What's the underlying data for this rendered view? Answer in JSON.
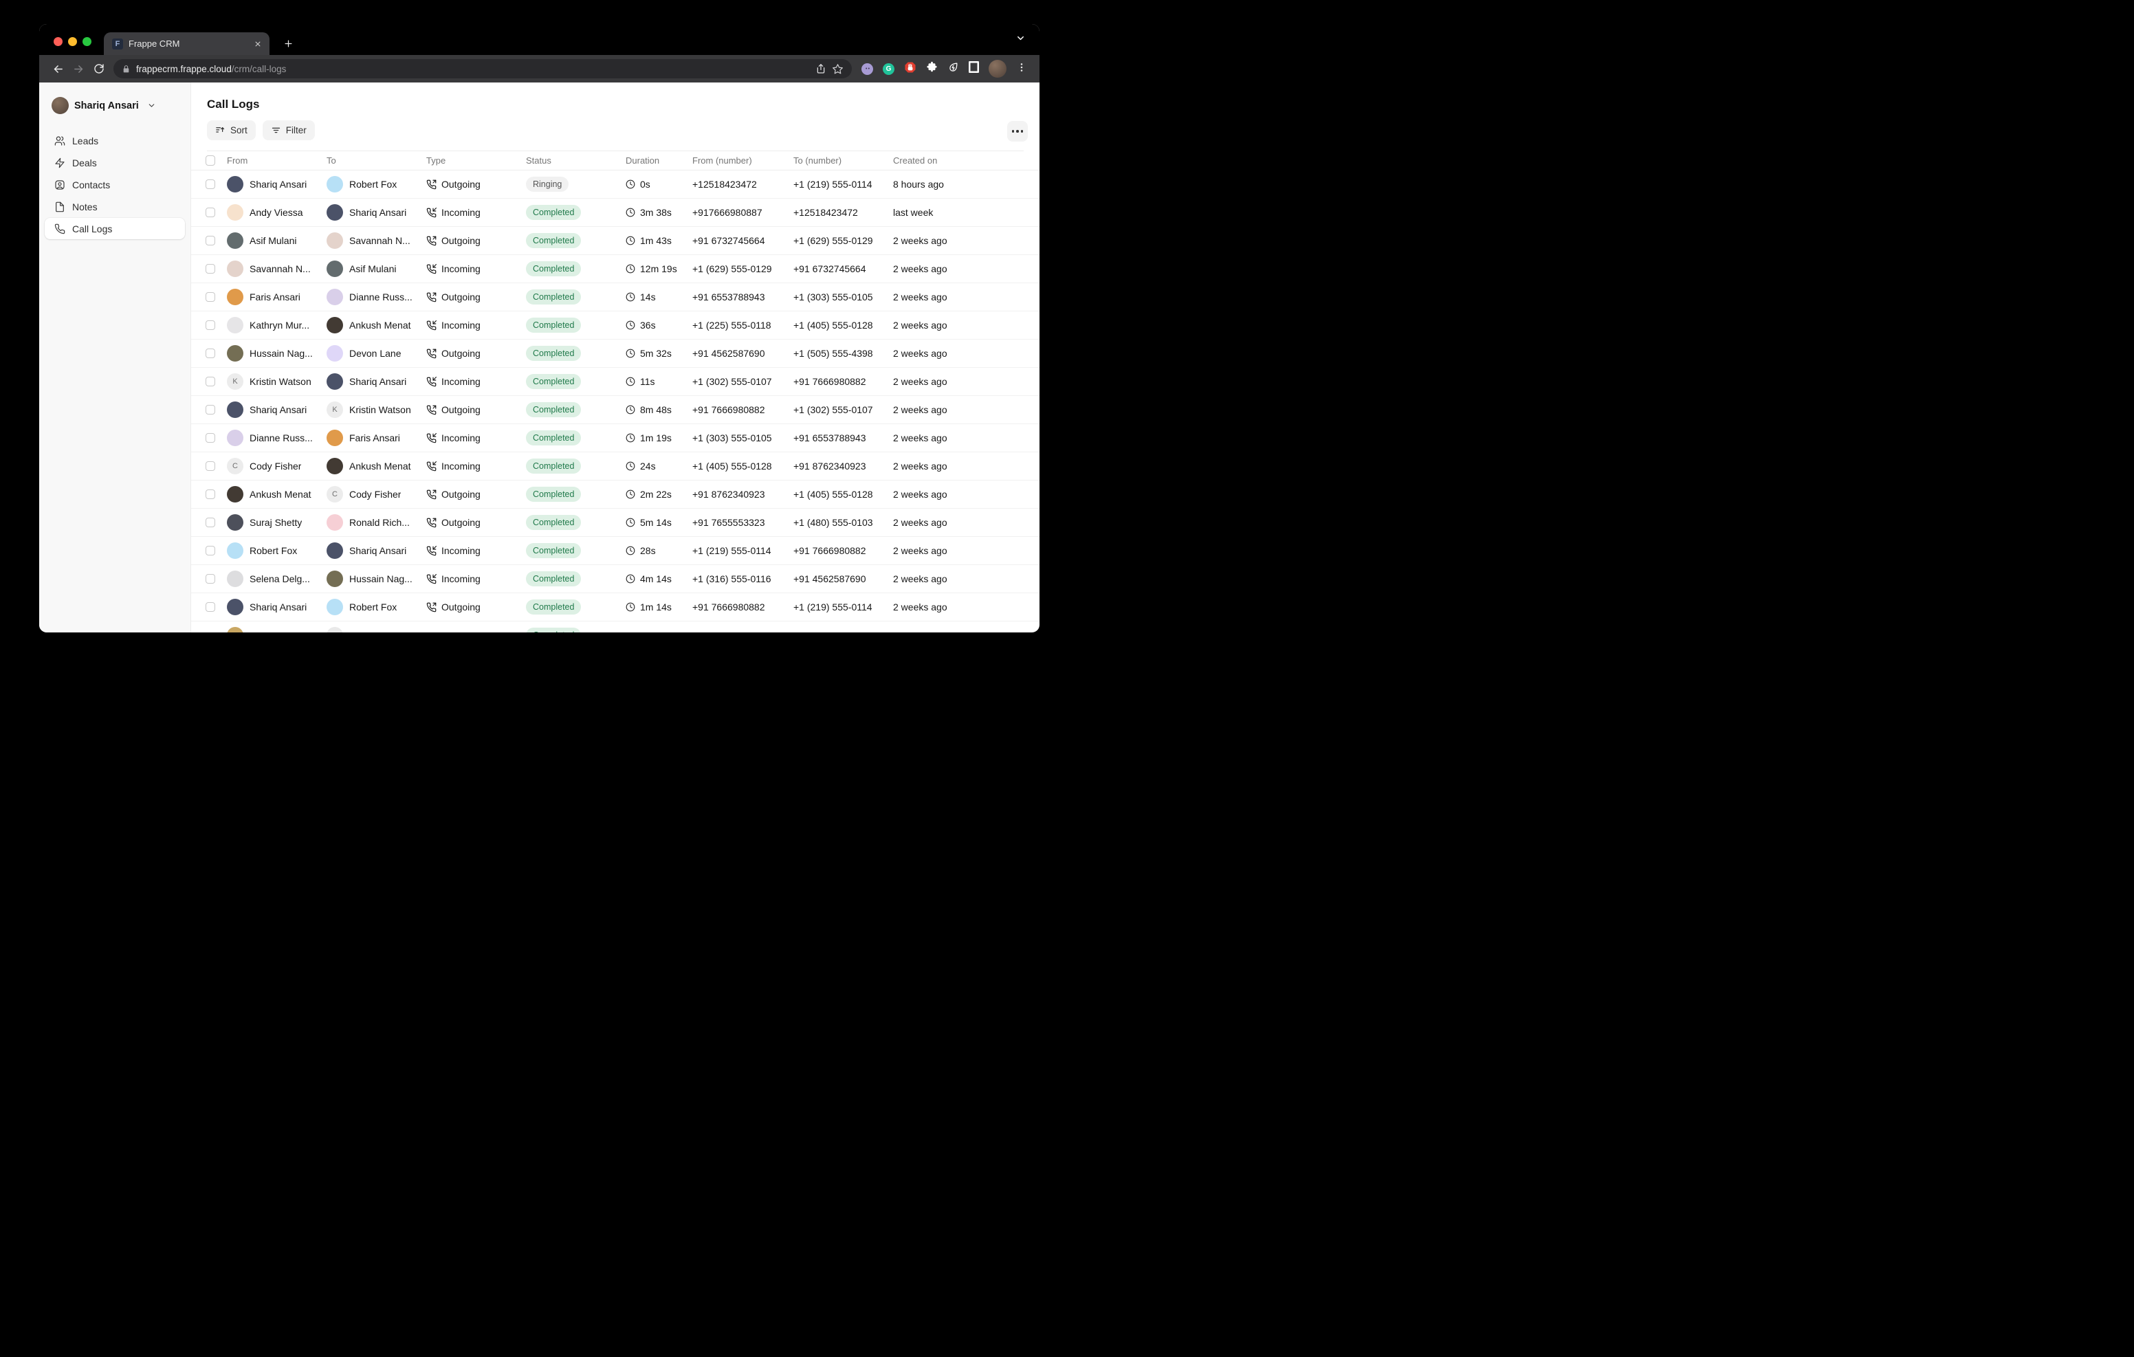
{
  "browser": {
    "tab_title": "Frappe CRM",
    "favicon_letter": "F",
    "url_host": "frappecrm.frappe.cloud",
    "url_path": "/crm/call-logs",
    "extensions": [
      "octocat-extension",
      "grammarly-extension",
      "adblock-extension",
      "extensions-puzzle",
      "energy-saver",
      "reader-frame"
    ],
    "grammarly_letter": "G"
  },
  "sidebar": {
    "user": {
      "name": "Shariq Ansari"
    },
    "items": [
      {
        "label": "Leads",
        "icon": "users"
      },
      {
        "label": "Deals",
        "icon": "zap"
      },
      {
        "label": "Contacts",
        "icon": "contact"
      },
      {
        "label": "Notes",
        "icon": "note"
      },
      {
        "label": "Call Logs",
        "icon": "phone",
        "active": true
      }
    ]
  },
  "main": {
    "title": "Call Logs",
    "sort_label": "Sort",
    "filter_label": "Filter",
    "columns": [
      "From",
      "To",
      "Type",
      "Status",
      "Duration",
      "From (number)",
      "To (number)",
      "Created on"
    ],
    "rows": [
      {
        "from": {
          "name": "Shariq Ansari",
          "initial": "S",
          "bg": "#4b5268",
          "fg": "rgba(255,255,255,0.9)"
        },
        "to": {
          "name": "Robert Fox",
          "initial": "R",
          "bg": "#b7e0f6",
          "fg": "rgba(23,23,23,0.55)"
        },
        "type": "Outgoing",
        "status": "Ringing",
        "duration": "0s",
        "from_number": "+12518423472",
        "to_number": "+1 (219) 555-0114",
        "created": "8 hours ago"
      },
      {
        "from": {
          "name": "Andy Viessa",
          "initial": "A",
          "bg": "#f7e2cd",
          "fg": "rgba(23,23,23,0.5)"
        },
        "to": {
          "name": "Shariq Ansari",
          "initial": "S",
          "bg": "#4b5268",
          "fg": "rgba(255,255,255,0.9)"
        },
        "type": "Incoming",
        "status": "Completed",
        "duration": "3m 38s",
        "from_number": "+917666980887",
        "to_number": "+12518423472",
        "created": "last week"
      },
      {
        "from": {
          "name": "Asif Mulani",
          "initial": "A",
          "bg": "#636c6e",
          "fg": "rgba(255,255,255,0.9)"
        },
        "to": {
          "name": "Savannah N...",
          "initial": "S",
          "bg": "#e4d3cb",
          "fg": "rgba(23,23,23,0.5)"
        },
        "type": "Outgoing",
        "status": "Completed",
        "duration": "1m 43s",
        "from_number": "+91 6732745664",
        "to_number": "+1 (629) 555-0129",
        "created": "2 weeks ago"
      },
      {
        "from": {
          "name": "Savannah N...",
          "initial": "S",
          "bg": "#e4d3cb",
          "fg": "rgba(23,23,23,0.5)"
        },
        "to": {
          "name": "Asif Mulani",
          "initial": "A",
          "bg": "#636c6e",
          "fg": "rgba(255,255,255,0.9)"
        },
        "type": "Incoming",
        "status": "Completed",
        "duration": "12m 19s",
        "from_number": "+1 (629) 555-0129",
        "to_number": "+91 6732745664",
        "created": "2 weeks ago"
      },
      {
        "from": {
          "name": "Faris Ansari",
          "initial": "F",
          "bg": "#e09a4a",
          "fg": "rgba(255,255,255,0.92)"
        },
        "to": {
          "name": "Dianne Russ...",
          "initial": "D",
          "bg": "#d9cfe9",
          "fg": "rgba(23,23,23,0.5)"
        },
        "type": "Outgoing",
        "status": "Completed",
        "duration": "14s",
        "from_number": "+91 6553788943",
        "to_number": "+1 (303) 555-0105",
        "created": "2 weeks ago"
      },
      {
        "from": {
          "name": "Kathryn Mur...",
          "initial": "K",
          "bg": "#e6e5e7",
          "fg": "rgba(23,23,23,0.5)"
        },
        "to": {
          "name": "Ankush Menat",
          "initial": "A",
          "bg": "#423a33",
          "fg": "rgba(255,255,255,0.88)"
        },
        "type": "Incoming",
        "status": "Completed",
        "duration": "36s",
        "from_number": "+1 (225) 555-0118",
        "to_number": "+1 (405) 555-0128",
        "created": "2 weeks ago"
      },
      {
        "from": {
          "name": "Hussain Nag...",
          "initial": "H",
          "bg": "#746e54",
          "fg": "rgba(255,255,255,0.9)"
        },
        "to": {
          "name": "Devon Lane",
          "initial": "D",
          "bg": "#dfd7f8",
          "fg": "rgba(23,23,23,0.5)"
        },
        "type": "Outgoing",
        "status": "Completed",
        "duration": "5m 32s",
        "from_number": "+91 4562587690",
        "to_number": "+1 (505) 555-4398",
        "created": "2 weeks ago"
      },
      {
        "from": {
          "name": "Kristin Watson",
          "initial": "K",
          "bg": "#ececec",
          "fg": "#6f6f6f",
          "letter": true
        },
        "to": {
          "name": "Shariq Ansari",
          "initial": "S",
          "bg": "#4b5268",
          "fg": "rgba(255,255,255,0.9)"
        },
        "type": "Incoming",
        "status": "Completed",
        "duration": "11s",
        "from_number": "+1 (302) 555-0107",
        "to_number": "+91 7666980882",
        "created": "2 weeks ago"
      },
      {
        "from": {
          "name": "Shariq Ansari",
          "initial": "S",
          "bg": "#4b5268",
          "fg": "rgba(255,255,255,0.9)"
        },
        "to": {
          "name": "Kristin Watson",
          "initial": "K",
          "bg": "#ececec",
          "fg": "#6f6f6f",
          "letter": true
        },
        "type": "Outgoing",
        "status": "Completed",
        "duration": "8m 48s",
        "from_number": "+91 7666980882",
        "to_number": "+1 (302) 555-0107",
        "created": "2 weeks ago"
      },
      {
        "from": {
          "name": "Dianne Russ...",
          "initial": "D",
          "bg": "#d9cfe9",
          "fg": "rgba(23,23,23,0.5)"
        },
        "to": {
          "name": "Faris Ansari",
          "initial": "F",
          "bg": "#e09a4a",
          "fg": "rgba(255,255,255,0.92)"
        },
        "type": "Incoming",
        "status": "Completed",
        "duration": "1m 19s",
        "from_number": "+1 (303) 555-0105",
        "to_number": "+91 6553788943",
        "created": "2 weeks ago"
      },
      {
        "from": {
          "name": "Cody Fisher",
          "initial": "C",
          "bg": "#ececec",
          "fg": "#6f6f6f",
          "letter": true
        },
        "to": {
          "name": "Ankush Menat",
          "initial": "A",
          "bg": "#423a33",
          "fg": "rgba(255,255,255,0.88)"
        },
        "type": "Incoming",
        "status": "Completed",
        "duration": "24s",
        "from_number": "+1 (405) 555-0128",
        "to_number": "+91 8762340923",
        "created": "2 weeks ago"
      },
      {
        "from": {
          "name": "Ankush Menat",
          "initial": "A",
          "bg": "#423a33",
          "fg": "rgba(255,255,255,0.88)"
        },
        "to": {
          "name": "Cody Fisher",
          "initial": "C",
          "bg": "#ececec",
          "fg": "#6f6f6f",
          "letter": true
        },
        "type": "Outgoing",
        "status": "Completed",
        "duration": "2m 22s",
        "from_number": "+91 8762340923",
        "to_number": "+1 (405) 555-0128",
        "created": "2 weeks ago"
      },
      {
        "from": {
          "name": "Suraj Shetty",
          "initial": "S",
          "bg": "#4d505b",
          "fg": "rgba(255,255,255,0.9)"
        },
        "to": {
          "name": "Ronald Rich...",
          "initial": "R",
          "bg": "#f6cfd5",
          "fg": "rgba(23,23,23,0.5)"
        },
        "type": "Outgoing",
        "status": "Completed",
        "duration": "5m 14s",
        "from_number": "+91 7655553323",
        "to_number": "+1 (480) 555-0103",
        "created": "2 weeks ago"
      },
      {
        "from": {
          "name": "Robert Fox",
          "initial": "R",
          "bg": "#b7e0f6",
          "fg": "rgba(23,23,23,0.55)"
        },
        "to": {
          "name": "Shariq Ansari",
          "initial": "S",
          "bg": "#4b5268",
          "fg": "rgba(255,255,255,0.9)"
        },
        "type": "Incoming",
        "status": "Completed",
        "duration": "28s",
        "from_number": "+1 (219) 555-0114",
        "to_number": "+91 7666980882",
        "created": "2 weeks ago"
      },
      {
        "from": {
          "name": "Selena Delg...",
          "initial": "S",
          "bg": "#dddddf",
          "fg": "rgba(23,23,23,0.5)"
        },
        "to": {
          "name": "Hussain Nag...",
          "initial": "H",
          "bg": "#746e54",
          "fg": "rgba(255,255,255,0.9)"
        },
        "type": "Incoming",
        "status": "Completed",
        "duration": "4m 14s",
        "from_number": "+1 (316) 555-0116",
        "to_number": "+91 4562587690",
        "created": "2 weeks ago"
      },
      {
        "from": {
          "name": "Shariq Ansari",
          "initial": "S",
          "bg": "#4b5268",
          "fg": "rgba(255,255,255,0.9)"
        },
        "to": {
          "name": "Robert Fox",
          "initial": "R",
          "bg": "#b7e0f6",
          "fg": "rgba(23,23,23,0.55)"
        },
        "type": "Outgoing",
        "status": "Completed",
        "duration": "1m 14s",
        "from_number": "+91 7666980882",
        "to_number": "+1 (219) 555-0114",
        "created": "2 weeks ago"
      },
      {
        "partial": true,
        "from": {
          "name": "",
          "initial": "",
          "bg": "#c9a763",
          "fg": "#fff"
        },
        "to": {
          "name": "",
          "initial": "",
          "bg": "#e9e9e9",
          "fg": "#999"
        },
        "type": "",
        "status": "Completed",
        "duration": "",
        "from_number": "",
        "to_number": "",
        "created": ""
      }
    ]
  },
  "colors": {
    "completed_bg": "#ddf0e4",
    "completed_fg": "#217a4b",
    "ringing_bg": "#f1f1f1",
    "ringing_fg": "#545454",
    "traffic_red": "#ff5f57",
    "traffic_yellow": "#febc2e",
    "traffic_green": "#28c840"
  }
}
